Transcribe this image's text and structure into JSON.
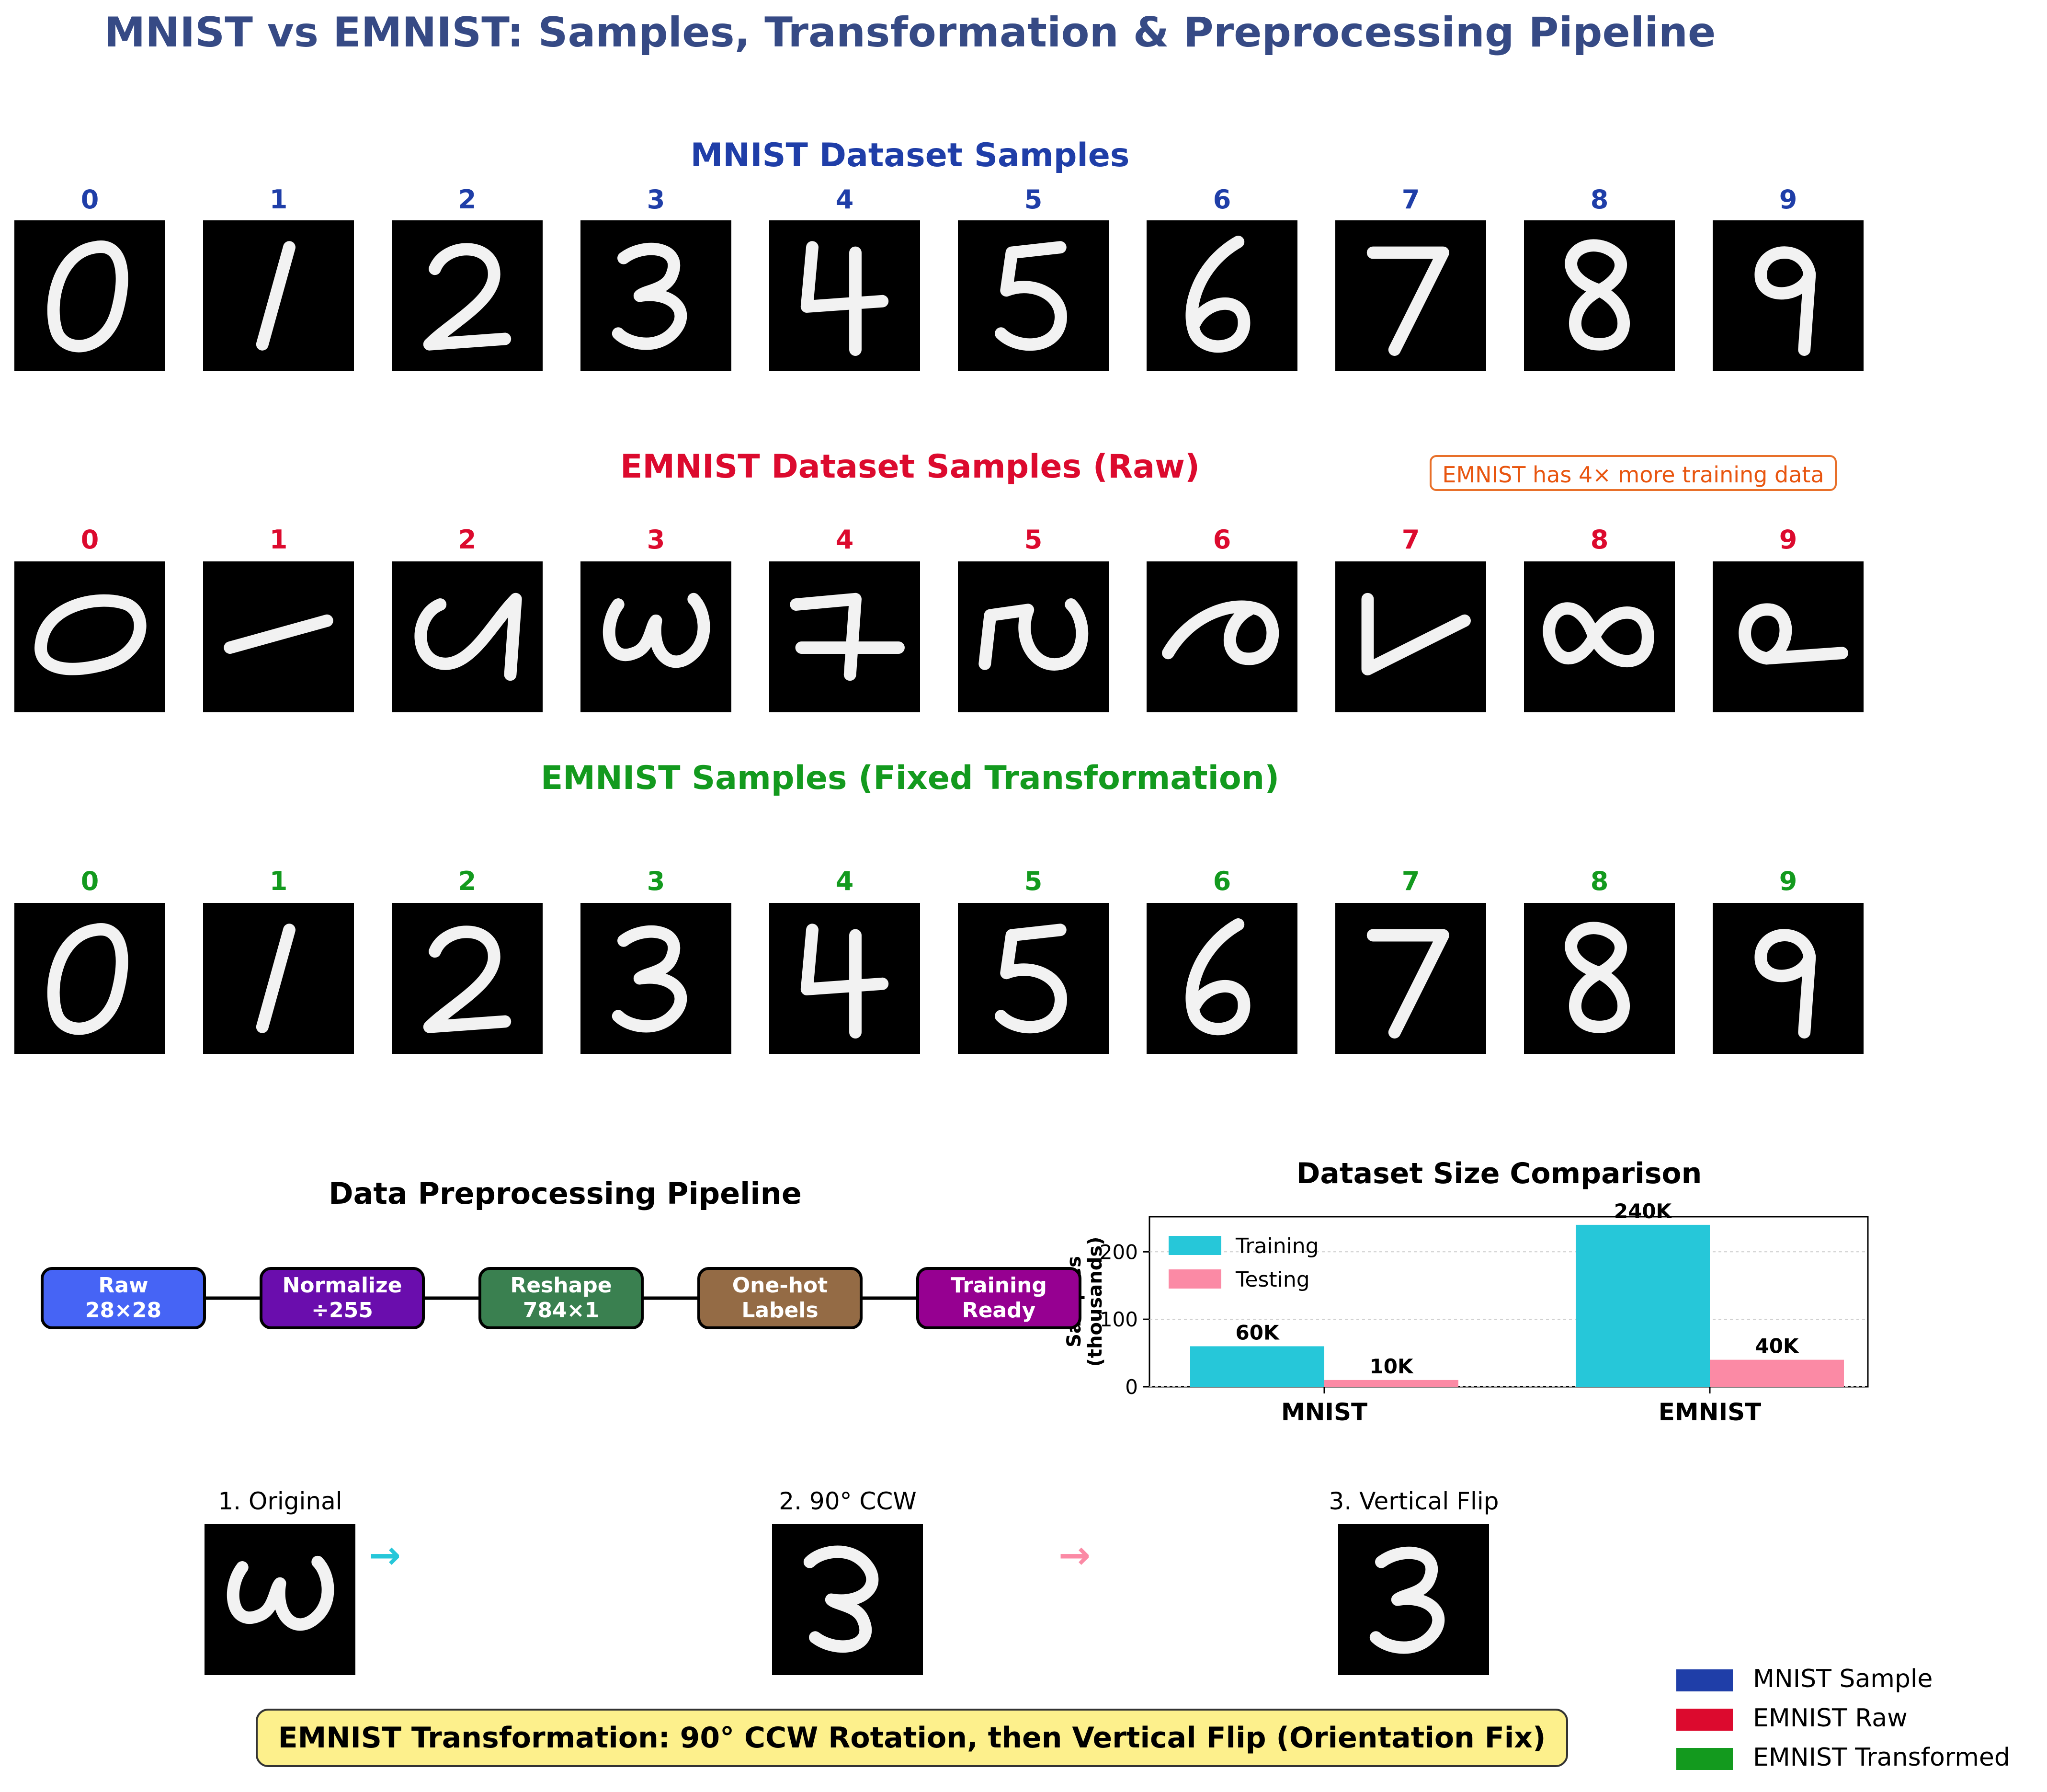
{
  "title": "MNIST vs EMNIST: Samples, Transformation & Preprocessing Pipeline",
  "colors": {
    "mnist": "#1f3ea8",
    "emnist_raw": "#dc0a2e",
    "emnist_fixed": "#139a1e",
    "training": "#26c7d9",
    "testing": "#fb8aa5"
  },
  "sections": {
    "mnist": {
      "title": "MNIST Dataset Samples",
      "labels": [
        "0",
        "1",
        "2",
        "3",
        "4",
        "5",
        "6",
        "7",
        "8",
        "9"
      ]
    },
    "emnist_raw": {
      "title": "EMNIST Dataset Samples (Raw)",
      "labels": [
        "0",
        "1",
        "2",
        "3",
        "4",
        "5",
        "6",
        "7",
        "8",
        "9"
      ]
    },
    "emnist_fixed": {
      "title": "EMNIST Samples (Fixed Transformation)",
      "labels": [
        "0",
        "1",
        "2",
        "3",
        "4",
        "5",
        "6",
        "7",
        "8",
        "9"
      ]
    }
  },
  "note": "EMNIST has 4× more training data",
  "pipeline": {
    "title": "Data Preprocessing Pipeline",
    "steps": [
      {
        "line1": "Raw",
        "line2": "28×28",
        "color": "#4664f5"
      },
      {
        "line1": "Normalize",
        "line2": "÷255",
        "color": "#6a0dad"
      },
      {
        "line1": "Reshape",
        "line2": "784×1",
        "color": "#3a8050"
      },
      {
        "line1": "One-hot",
        "line2": "Labels",
        "color": "#946b45"
      },
      {
        "line1": "Training",
        "line2": "Ready",
        "color": "#960091"
      }
    ]
  },
  "chart_data": {
    "type": "bar",
    "title": "Dataset Size Comparison",
    "categories": [
      "MNIST",
      "EMNIST"
    ],
    "series": [
      {
        "name": "Training",
        "values": [
          60,
          240
        ],
        "labels": [
          "60K",
          "240K"
        ]
      },
      {
        "name": "Testing",
        "values": [
          10,
          40
        ],
        "labels": [
          "10K",
          "40K"
        ]
      }
    ],
    "xlabel": "",
    "ylabel": "Samples (thousands)",
    "ylim": [
      0,
      252
    ],
    "yticks": [
      0,
      100,
      200
    ],
    "grid": true,
    "legend": "top-left"
  },
  "transform_steps": {
    "labels": [
      "1. Original",
      "2. 90° CCW",
      "3. Vertical Flip"
    ],
    "arrow": "→"
  },
  "caption": "EMNIST Transformation: 90° CCW Rotation, then Vertical Flip (Orientation Fix)",
  "legend": [
    {
      "label": "MNIST Sample",
      "color": "#1f3ea8"
    },
    {
      "label": "EMNIST Raw",
      "color": "#dc0a2e"
    },
    {
      "label": "EMNIST Transformed",
      "color": "#139a1e"
    }
  ]
}
